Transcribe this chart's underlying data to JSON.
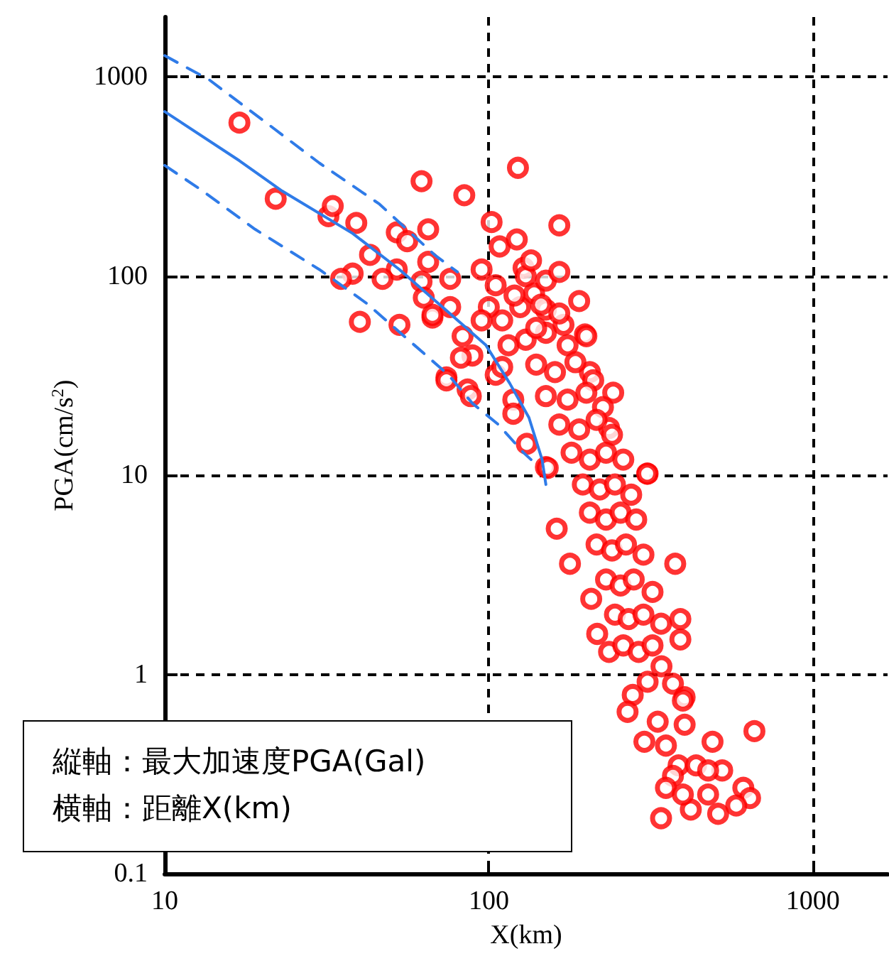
{
  "chart_data": {
    "type": "scatter",
    "xlabel": "X(km)",
    "ylabel": "PGA(cm/s$^{2}$)",
    "log": "xy",
    "grid": true,
    "xlim": [
      10,
      1700
    ],
    "xticks": [
      10,
      100,
      1000
    ],
    "ylim": [
      0.1,
      2000
    ],
    "yticks": [
      0.1,
      1,
      10,
      100,
      1000
    ],
    "annotations": [
      "縦軸：最大加速度PGA(Gal)",
      "横軸：距離X(km)"
    ],
    "series": [
      {
        "color": "#ff0000",
        "marker": "circle",
        "x": [
          17,
          22,
          32,
          33,
          39,
          62,
          84,
          123,
          102,
          165,
          43,
          52,
          56,
          65,
          65,
          52,
          47,
          62,
          63,
          67,
          76,
          53,
          74,
          86,
          76,
          95,
          108,
          128,
          122,
          138,
          83,
          89,
          105,
          150,
          170,
          198,
          205,
          242,
          235,
          309,
          74,
          88,
          131,
          150,
          119,
          119,
          82,
          67,
          38,
          35,
          40,
          152,
          308,
          162,
          178,
          376,
          207,
          390,
          216,
          235,
          390,
          341,
          309,
          370,
          278,
          402,
          268,
          397,
          332,
          402,
          302,
          352,
          490,
          660,
          385,
          436,
          525,
          370,
          475,
          352,
          475,
          610,
          640,
          580,
          420,
          510,
          340,
          397,
          130,
          150,
          165,
          125,
          145,
          165,
          190,
          130,
          150,
          175,
          200,
          140,
          160,
          185,
          210,
          150,
          175,
          200,
          225,
          165,
          190,
          215,
          240,
          180,
          205,
          230,
          260,
          195,
          220,
          245,
          275,
          205,
          230,
          255,
          285,
          215,
          240,
          265,
          300,
          230,
          255,
          280,
          320,
          245,
          270,
          300,
          340,
          260,
          290,
          320,
          110,
          115,
          120,
          135,
          140,
          110,
          100,
          95,
          105
        ],
        "values": [
          590,
          245,
          200,
          225,
          185,
          300,
          255,
          350,
          187,
          180,
          128,
          166,
          150,
          172,
          118,
          108,
          97,
          94,
          78,
          62,
          70,
          57,
          31,
          27,
          97,
          108,
          141,
          110,
          153,
          82,
          50,
          40,
          32,
          68,
          57,
          51,
          33,
          26,
          17.3,
          10.2,
          30,
          25,
          14.4,
          11,
          24,
          20.4,
          39,
          64,
          103,
          97,
          59,
          10.9,
          10.2,
          5.4,
          3.6,
          3.6,
          2.4,
          1.9,
          1.6,
          1.3,
          1.5,
          1.1,
          0.92,
          0.9,
          0.79,
          0.77,
          0.65,
          0.74,
          0.58,
          0.56,
          0.46,
          0.44,
          0.46,
          0.52,
          0.35,
          0.35,
          0.33,
          0.31,
          0.33,
          0.27,
          0.25,
          0.27,
          0.24,
          0.22,
          0.21,
          0.2,
          0.19,
          0.25,
          100,
          95,
          105,
          70,
          72,
          65,
          75,
          48,
          52,
          45,
          50,
          36,
          33,
          37,
          30,
          25,
          24,
          26,
          22,
          18,
          17,
          19,
          16,
          13,
          12,
          13,
          12,
          9,
          8.5,
          9,
          8,
          6.5,
          6,
          6.5,
          6,
          4.5,
          4.2,
          4.5,
          4,
          3,
          2.8,
          3,
          2.6,
          2,
          1.9,
          2,
          1.8,
          1.4,
          1.3,
          1.4,
          60,
          45,
          80,
          120,
          55,
          35,
          70,
          60,
          90
        ]
      },
      {
        "type": "line",
        "color": "#2f7be8",
        "marker": "none",
        "line_style": "solid",
        "x": [
          10,
          17,
          23,
          38,
          53,
          75,
          98,
          116,
          133,
          146,
          150
        ],
        "values": [
          670,
          380,
          268,
          164,
          108,
          66,
          45,
          29,
          19.5,
          12,
          9
        ]
      },
      {
        "type": "line",
        "color": "#2f7be8",
        "marker": "none",
        "line_style": "dashed",
        "x": [
          10,
          13.7,
          20,
          30,
          46,
          68,
          80
        ],
        "values": [
          1280,
          970,
          610,
          370,
          230,
          128,
          105
        ]
      },
      {
        "type": "line",
        "color": "#2f7be8",
        "marker": "none",
        "line_style": "dashed",
        "x": [
          10,
          13,
          19,
          30,
          42,
          59,
          75,
          89,
          107,
          128,
          135
        ],
        "values": [
          360,
          270,
          172,
          108,
          73,
          45,
          32,
          23,
          18,
          13,
          12
        ]
      }
    ]
  }
}
